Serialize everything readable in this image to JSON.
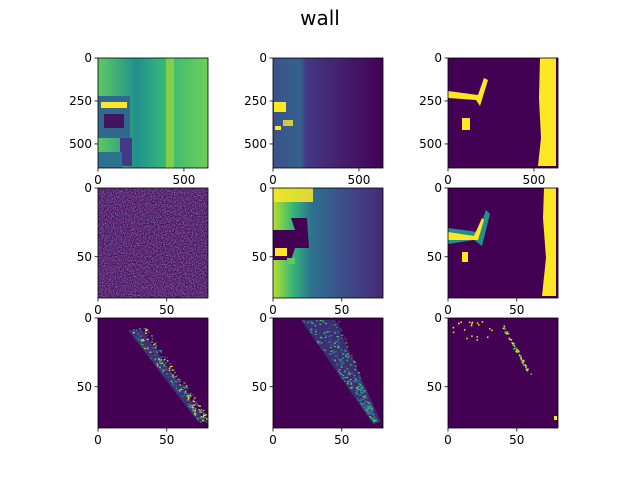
{
  "figure": {
    "suptitle": "wall"
  },
  "colors": {
    "dark": "#440154",
    "mid_dark": "#3b528b",
    "mid": "#21908d",
    "mid_light": "#5dc963",
    "bright": "#fde725"
  },
  "chart_data": [
    {
      "type": "heatmap",
      "panel": "r1c1",
      "extent": [
        0,
        640
      ],
      "ylim": [
        0,
        640
      ],
      "x_ticks": [
        {
          "v": 0,
          "label": "0"
        },
        {
          "v": 500,
          "label": "500"
        }
      ],
      "y_ticks": [
        {
          "v": 0,
          "label": "0"
        },
        {
          "v": 250,
          "label": "250"
        },
        {
          "v": 500,
          "label": "500"
        }
      ]
    },
    {
      "type": "heatmap",
      "panel": "r1c2",
      "extent": [
        0,
        640
      ],
      "ylim": [
        0,
        640
      ],
      "x_ticks": [
        {
          "v": 0,
          "label": "0"
        },
        {
          "v": 500,
          "label": "500"
        }
      ],
      "y_ticks": [
        {
          "v": 0,
          "label": "0"
        },
        {
          "v": 250,
          "label": "250"
        },
        {
          "v": 500,
          "label": "500"
        }
      ]
    },
    {
      "type": "heatmap",
      "panel": "r1c3",
      "extent": [
        0,
        640
      ],
      "ylim": [
        0,
        640
      ],
      "x_ticks": [
        {
          "v": 0,
          "label": "0"
        },
        {
          "v": 500,
          "label": "500"
        }
      ],
      "y_ticks": [
        {
          "v": 0,
          "label": "0"
        },
        {
          "v": 250,
          "label": "250"
        },
        {
          "v": 500,
          "label": "500"
        }
      ]
    },
    {
      "type": "heatmap",
      "panel": "r2c1",
      "extent": [
        0,
        80
      ],
      "ylim": [
        0,
        80
      ],
      "x_ticks": [
        {
          "v": 0,
          "label": "0"
        },
        {
          "v": 50,
          "label": "50"
        }
      ],
      "y_ticks": [
        {
          "v": 0,
          "label": "0"
        },
        {
          "v": 50,
          "label": "50"
        }
      ]
    },
    {
      "type": "heatmap",
      "panel": "r2c2",
      "extent": [
        0,
        80
      ],
      "ylim": [
        0,
        80
      ],
      "x_ticks": [
        {
          "v": 0,
          "label": "0"
        },
        {
          "v": 50,
          "label": "50"
        }
      ],
      "y_ticks": [
        {
          "v": 0,
          "label": "0"
        },
        {
          "v": 50,
          "label": "50"
        }
      ]
    },
    {
      "type": "heatmap",
      "panel": "r2c3",
      "extent": [
        0,
        80
      ],
      "ylim": [
        0,
        80
      ],
      "x_ticks": [
        {
          "v": 0,
          "label": "0"
        },
        {
          "v": 50,
          "label": "50"
        }
      ],
      "y_ticks": [
        {
          "v": 0,
          "label": "0"
        },
        {
          "v": 50,
          "label": "50"
        }
      ]
    },
    {
      "type": "heatmap",
      "panel": "r3c1",
      "extent": [
        0,
        80
      ],
      "ylim": [
        0,
        80
      ],
      "x_ticks": [
        {
          "v": 0,
          "label": "0"
        },
        {
          "v": 50,
          "label": "50"
        }
      ],
      "y_ticks": [
        {
          "v": 0,
          "label": "0"
        },
        {
          "v": 50,
          "label": "50"
        }
      ]
    },
    {
      "type": "heatmap",
      "panel": "r3c2",
      "extent": [
        0,
        80
      ],
      "ylim": [
        0,
        80
      ],
      "x_ticks": [
        {
          "v": 0,
          "label": "0"
        },
        {
          "v": 50,
          "label": "50"
        }
      ],
      "y_ticks": [
        {
          "v": 0,
          "label": "0"
        },
        {
          "v": 50,
          "label": "50"
        }
      ]
    },
    {
      "type": "heatmap",
      "panel": "r3c3",
      "extent": [
        0,
        80
      ],
      "ylim": [
        0,
        80
      ],
      "x_ticks": [
        {
          "v": 0,
          "label": "0"
        },
        {
          "v": 50,
          "label": "50"
        }
      ],
      "y_ticks": [
        {
          "v": 0,
          "label": "0"
        },
        {
          "v": 50,
          "label": "50"
        }
      ]
    }
  ]
}
